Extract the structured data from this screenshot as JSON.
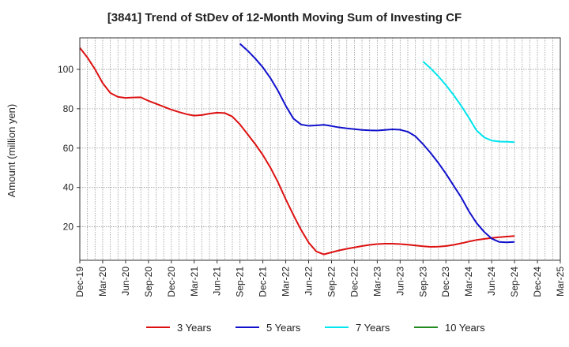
{
  "chart_data": {
    "type": "line",
    "title": "[3841]  Trend of StDev of 12-Month Moving Sum of Investing CF",
    "xlabel": "",
    "ylabel": "Amount (million yen)",
    "ylim": [
      3,
      116
    ],
    "yticks": [
      20,
      40,
      60,
      80,
      100
    ],
    "x_tick_labels": [
      "Dec-19",
      "Mar-20",
      "Jun-20",
      "Sep-20",
      "Dec-20",
      "Mar-21",
      "Jun-21",
      "Sep-21",
      "Dec-21",
      "Mar-22",
      "Jun-22",
      "Sep-22",
      "Dec-22",
      "Mar-23",
      "Jun-23",
      "Sep-23",
      "Dec-23",
      "Mar-24",
      "Jun-24",
      "Sep-24",
      "Dec-24",
      "Mar-25"
    ],
    "x_start": "Dec-19",
    "x_end": "Mar-25",
    "grid": true,
    "legend_position": "bottom",
    "series": [
      {
        "name": "3 Years",
        "color": "#dd1111",
        "x": [
          "Dec-19",
          "Jan-20",
          "Feb-20",
          "Mar-20",
          "Apr-20",
          "May-20",
          "Jun-20",
          "Jul-20",
          "Aug-20",
          "Sep-20",
          "Oct-20",
          "Nov-20",
          "Dec-20",
          "Jan-21",
          "Feb-21",
          "Mar-21",
          "Apr-21",
          "May-21",
          "Jun-21",
          "Jul-21",
          "Aug-21",
          "Sep-21",
          "Oct-21",
          "Nov-21",
          "Dec-21",
          "Jan-22",
          "Feb-22",
          "Mar-22",
          "Apr-22",
          "May-22",
          "Jun-22",
          "Jul-22",
          "Aug-22",
          "Sep-22",
          "Oct-22",
          "Nov-22",
          "Dec-22",
          "Jan-23",
          "Feb-23",
          "Mar-23",
          "Apr-23",
          "May-23",
          "Jun-23",
          "Jul-23",
          "Aug-23",
          "Sep-23",
          "Oct-23",
          "Nov-23",
          "Dec-23",
          "Jan-24",
          "Feb-24",
          "Mar-24",
          "Apr-24",
          "May-24",
          "Jun-24",
          "Jul-24",
          "Aug-24",
          "Sep-24"
        ],
        "values": [
          111,
          106,
          100,
          93,
          88,
          86,
          85.5,
          85.7,
          85.8,
          84,
          82.5,
          81,
          79.5,
          78.3,
          77.2,
          76.5,
          76.8,
          77.5,
          78,
          77.8,
          76,
          72,
          67,
          62,
          56.5,
          50,
          42.5,
          34,
          26,
          18.5,
          12,
          7.5,
          6,
          7,
          8,
          8.8,
          9.5,
          10.2,
          10.8,
          11.2,
          11.4,
          11.4,
          11.2,
          10.9,
          10.5,
          10.1,
          9.8,
          9.9,
          10.2,
          10.8,
          11.6,
          12.5,
          13.3,
          13.8,
          14.3,
          14.7,
          15,
          15.3
        ]
      },
      {
        "name": "5 Years",
        "color": "#1111cc",
        "x": [
          "Sep-21",
          "Oct-21",
          "Nov-21",
          "Dec-21",
          "Jan-22",
          "Feb-22",
          "Mar-22",
          "Apr-22",
          "May-22",
          "Jun-22",
          "Jul-22",
          "Aug-22",
          "Sep-22",
          "Oct-22",
          "Nov-22",
          "Dec-22",
          "Jan-23",
          "Feb-23",
          "Mar-23",
          "Apr-23",
          "May-23",
          "Jun-23",
          "Jul-23",
          "Aug-23",
          "Sep-23",
          "Oct-23",
          "Nov-23",
          "Dec-23",
          "Jan-24",
          "Feb-24",
          "Mar-24",
          "Apr-24",
          "May-24",
          "Jun-24",
          "Jul-24",
          "Aug-24",
          "Sep-24"
        ],
        "values": [
          113,
          109.5,
          105.5,
          101,
          95.5,
          89,
          81.5,
          75,
          72,
          71.3,
          71.5,
          71.8,
          71.2,
          70.5,
          70,
          69.6,
          69.2,
          69,
          68.9,
          69.2,
          69.5,
          69.3,
          68.3,
          66,
          62,
          57.5,
          52.5,
          47,
          41,
          35,
          28,
          22,
          17.5,
          14,
          12.3,
          12.1,
          12.3
        ]
      },
      {
        "name": "7 Years",
        "color": "#00e5ee",
        "x": [
          "Sep-23",
          "Oct-23",
          "Nov-23",
          "Dec-23",
          "Jan-24",
          "Feb-24",
          "Mar-24",
          "Apr-24",
          "May-24",
          "Jun-24",
          "Jul-24",
          "Aug-24",
          "Sep-24"
        ],
        "values": [
          104,
          100.5,
          96.5,
          92,
          87,
          81.5,
          75.5,
          69,
          65.5,
          63.8,
          63.3,
          63.2,
          63
        ]
      },
      {
        "name": "10 Years",
        "color": "#228b22",
        "x": [],
        "values": []
      }
    ]
  }
}
